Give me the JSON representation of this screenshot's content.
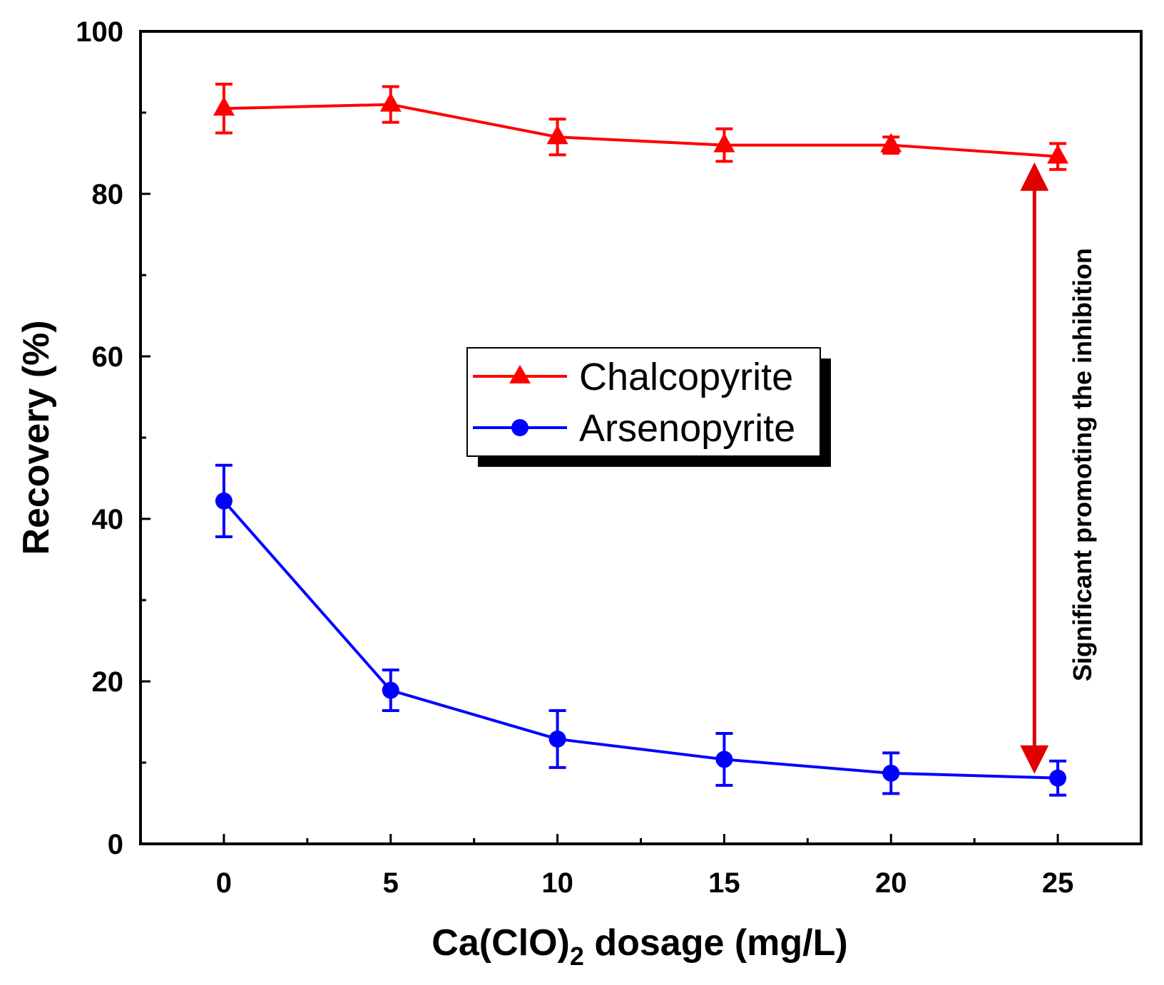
{
  "chart_data": {
    "type": "line",
    "title": "",
    "xlabel_prefix": "Ca(ClO)",
    "xlabel_subscript": "2",
    "xlabel_suffix": " dosage (mg/L)",
    "ylabel": "Recovery (%)",
    "xlim": [
      -2.5,
      27.5
    ],
    "ylim": [
      0,
      100
    ],
    "x_ticks": [
      0,
      5,
      10,
      15,
      20,
      25
    ],
    "x_tick_labels": [
      "0",
      "5",
      "10",
      "15",
      "20",
      "25"
    ],
    "y_ticks": [
      0,
      20,
      40,
      60,
      80,
      100
    ],
    "y_tick_labels": [
      "0",
      "20",
      "40",
      "60",
      "80",
      "100"
    ],
    "grid": false,
    "legend_position": "center",
    "series": [
      {
        "name": "Chalcopyrite",
        "color": "#ff0000",
        "marker": "triangle",
        "x": [
          0,
          5,
          10,
          15,
          20,
          25
        ],
        "values": [
          90.5,
          91.0,
          87.0,
          86.0,
          86.0,
          84.6
        ],
        "errors": [
          3.0,
          2.2,
          2.2,
          2.0,
          1.0,
          1.6
        ]
      },
      {
        "name": "Arsenopyrite",
        "color": "#0000ff",
        "marker": "circle",
        "x": [
          0,
          5,
          10,
          15,
          20,
          25
        ],
        "values": [
          42.2,
          18.9,
          12.9,
          10.4,
          8.7,
          8.1
        ],
        "errors": [
          4.4,
          2.5,
          3.5,
          3.2,
          2.5,
          2.1
        ]
      }
    ],
    "annotation": {
      "text": "Significant promoting the inhibition",
      "x": 24.3,
      "y_from": 9.5,
      "y_to": 83,
      "color": "#e00000"
    }
  }
}
